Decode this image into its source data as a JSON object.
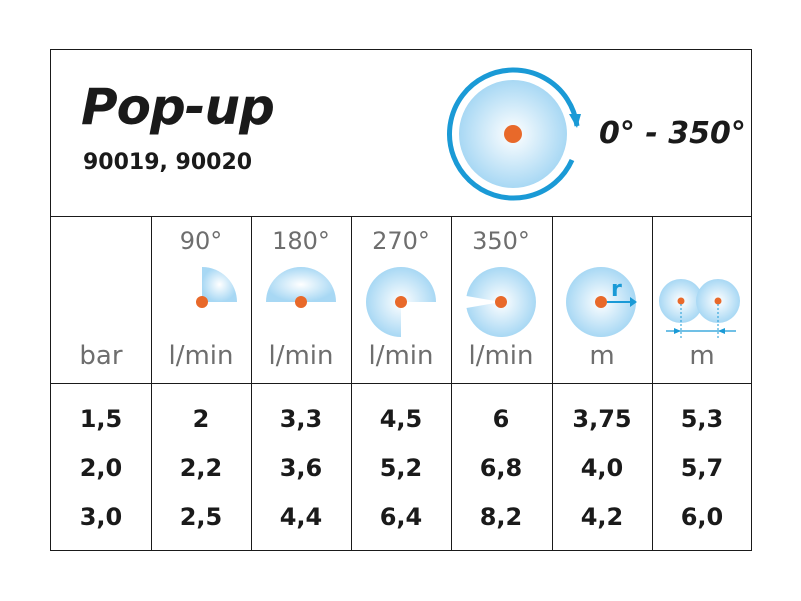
{
  "header": {
    "title": "Pop-up",
    "models": "90019, 90020",
    "rotation_range": "0° - 350°"
  },
  "colors": {
    "accent_blue": "#1a9ad6",
    "nozzle_orange": "#e8692a",
    "spray_light": "#a8d8f4"
  },
  "columns": [
    {
      "angle": "",
      "unit": "bar",
      "icon": "none",
      "values": [
        "1,5",
        "2,0",
        "3,0"
      ]
    },
    {
      "angle": "90°",
      "unit": "l/min",
      "icon": "sector-90-icon",
      "values": [
        "2",
        "2,2",
        "2,5"
      ]
    },
    {
      "angle": "180°",
      "unit": "l/min",
      "icon": "sector-180-icon",
      "values": [
        "3,3",
        "3,6",
        "4,4"
      ]
    },
    {
      "angle": "270°",
      "unit": "l/min",
      "icon": "sector-270-icon",
      "values": [
        "4,5",
        "5,2",
        "6,4"
      ]
    },
    {
      "angle": "350°",
      "unit": "l/min",
      "icon": "sector-350-icon",
      "values": [
        "6",
        "6,8",
        "8,2"
      ]
    },
    {
      "angle": "",
      "unit": "m",
      "icon": "radius-icon",
      "radius_label": "r",
      "values": [
        "3,75",
        "4,0",
        "4,2"
      ]
    },
    {
      "angle": "",
      "unit": "m",
      "icon": "spacing-icon",
      "values": [
        "5,3",
        "5,7",
        "6,0"
      ]
    }
  ]
}
